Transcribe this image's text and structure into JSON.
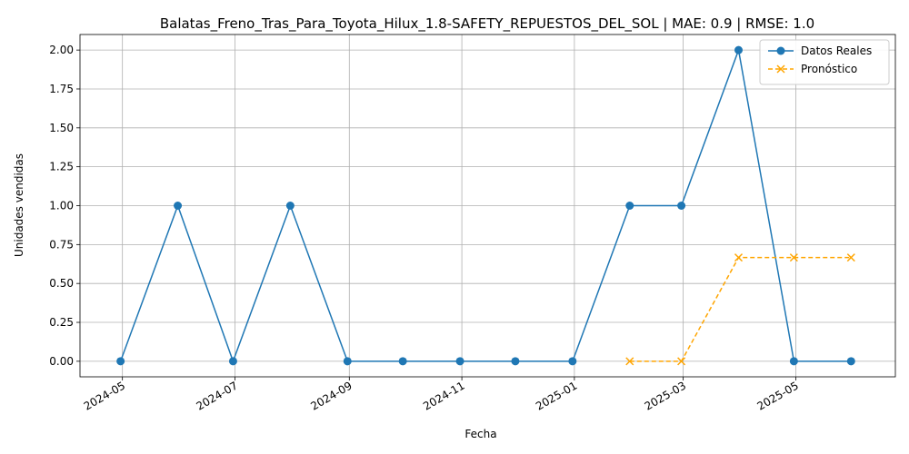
{
  "chart_data": {
    "type": "line",
    "title": "Balatas_Freno_Tras_Para_Toyota_Hilux_1.8-SAFETY_REPUESTOS_DEL_SOL | MAE: 0.9 | RMSE: 1.0",
    "xlabel": "Fecha",
    "ylabel": "Unidades vendidas",
    "x_ticks": [
      "2024-05",
      "2024-07",
      "2024-09",
      "2024-11",
      "2025-01",
      "2025-03",
      "2025-05"
    ],
    "y_ticks": [
      "0.00",
      "0.25",
      "0.50",
      "0.75",
      "1.00",
      "1.25",
      "1.50",
      "1.75",
      "2.00"
    ],
    "xlim": [
      "2024-04-08",
      "2025-06-24"
    ],
    "ylim": [
      -0.1,
      2.1
    ],
    "grid": true,
    "legend_position": "top-right",
    "series": [
      {
        "name": "Datos Reales",
        "color": "#1f77b4",
        "line_style": "solid",
        "marker": "circle",
        "x": [
          "2024-04-30",
          "2024-05-31",
          "2024-06-30",
          "2024-07-31",
          "2024-08-31",
          "2024-09-30",
          "2024-10-31",
          "2024-11-30",
          "2024-12-31",
          "2025-01-31",
          "2025-02-28",
          "2025-03-31",
          "2025-04-30",
          "2025-05-31"
        ],
        "values": [
          0,
          1,
          0,
          1,
          0,
          0,
          0,
          0,
          0,
          1,
          1,
          2,
          0,
          0
        ]
      },
      {
        "name": "Pronóstico",
        "color": "#ffa500",
        "line_style": "dashed",
        "marker": "x",
        "x": [
          "2025-01-31",
          "2025-02-28",
          "2025-03-31",
          "2025-04-30",
          "2025-05-31"
        ],
        "values": [
          0,
          0,
          0.6667,
          0.6667,
          0.6667
        ]
      }
    ]
  }
}
